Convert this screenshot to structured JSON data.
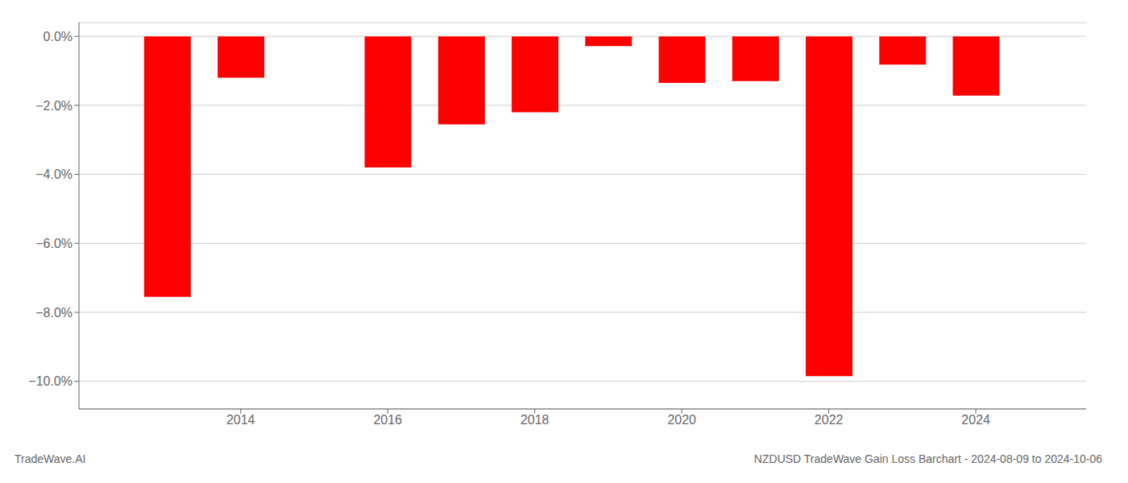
{
  "chart_data": {
    "type": "bar",
    "x": [
      2013,
      2014,
      2016,
      2017,
      2018,
      2019,
      2020,
      2021,
      2022,
      2023,
      2024
    ],
    "values": [
      -7.55,
      -1.2,
      -3.8,
      -2.55,
      -2.2,
      -0.28,
      -1.35,
      -1.3,
      -9.85,
      -0.82,
      -1.72
    ],
    "color": "#ff0000",
    "xlim": [
      2011.8,
      2025.5
    ],
    "xticks": [
      2014,
      2016,
      2018,
      2020,
      2022,
      2024
    ],
    "ylim": [
      -10.8,
      0.4
    ],
    "yticks": [
      {
        "value": 0.0,
        "label": "0.0%"
      },
      {
        "value": -2.0,
        "label": "−2.0%"
      },
      {
        "value": -4.0,
        "label": "−4.0%"
      },
      {
        "value": -6.0,
        "label": "−6.0%"
      },
      {
        "value": -8.0,
        "label": "−8.0%"
      },
      {
        "value": -10.0,
        "label": "−10.0%"
      }
    ],
    "grid": true,
    "annotations": [
      "TradeWave.AI",
      "NZDUSD TradeWave Gain Loss Barchart - 2024-08-09 to 2024-10-06"
    ]
  }
}
